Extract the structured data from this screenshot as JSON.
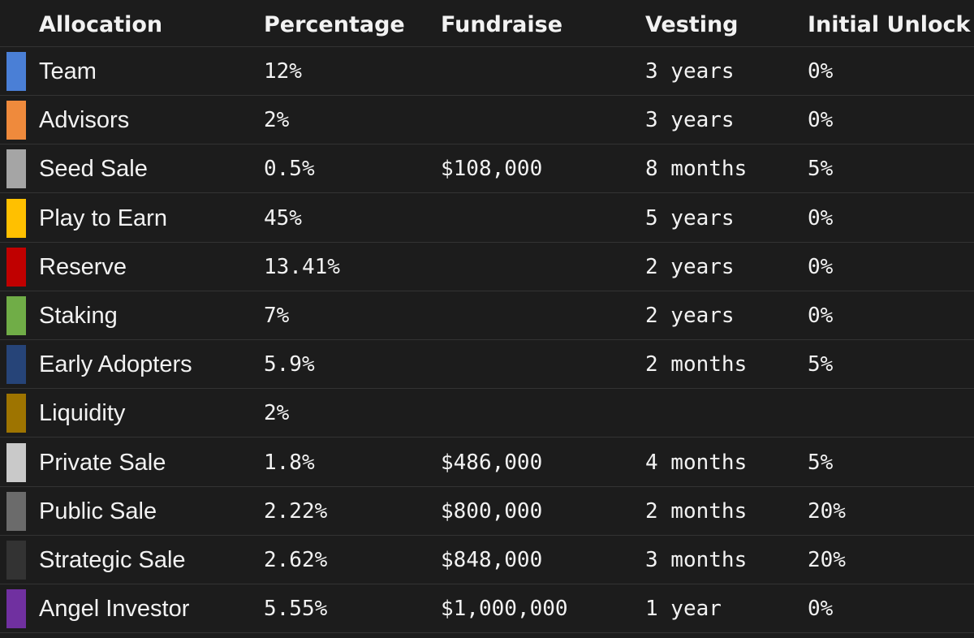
{
  "table": {
    "columns": [
      "Allocation",
      "Percentage",
      "Fundraise",
      "Vesting",
      "Initial Unlock"
    ],
    "rows": [
      {
        "color": "#4a7fd6",
        "cells": [
          "Team",
          "12%",
          null,
          "3 years",
          "0%"
        ]
      },
      {
        "color": "#ef8a3c",
        "cells": [
          "Advisors",
          "2%",
          null,
          "3 years",
          "0%"
        ]
      },
      {
        "color": "#a5a5a5",
        "cells": [
          "Seed Sale",
          "0.5%",
          "$108,000",
          "8 months",
          "5%"
        ]
      },
      {
        "color": "#ffc000",
        "cells": [
          "Play to Earn",
          "45%",
          null,
          "5 years",
          "0%"
        ]
      },
      {
        "color": "#c00000",
        "cells": [
          "Reserve",
          "13.41%",
          null,
          "2 years",
          "0%"
        ]
      },
      {
        "color": "#70ad47",
        "cells": [
          "Staking",
          "7%",
          null,
          "2 years",
          "0%"
        ]
      },
      {
        "color": "#264478",
        "cells": [
          "Early Adopters",
          "5.9%",
          null,
          "2 months",
          "5%"
        ]
      },
      {
        "color": "#9e7400",
        "cells": [
          "Liquidity",
          "2%",
          null,
          null,
          null
        ]
      },
      {
        "color": "#c9c9c9",
        "cells": [
          "Private Sale",
          "1.8%",
          "$486,000",
          "4 months",
          "5%"
        ]
      },
      {
        "color": "#6b6b6b",
        "cells": [
          "Public Sale",
          "2.22%",
          "$800,000",
          "2 months",
          "20%"
        ]
      },
      {
        "color": "#333333",
        "cells": [
          "Strategic Sale",
          "2.62%",
          "$848,000",
          "3 months",
          "20%"
        ]
      },
      {
        "color": "#7030a0",
        "cells": [
          "Angel Investor",
          "5.55%",
          "$1,000,000",
          "1 year",
          "0%"
        ]
      }
    ]
  }
}
